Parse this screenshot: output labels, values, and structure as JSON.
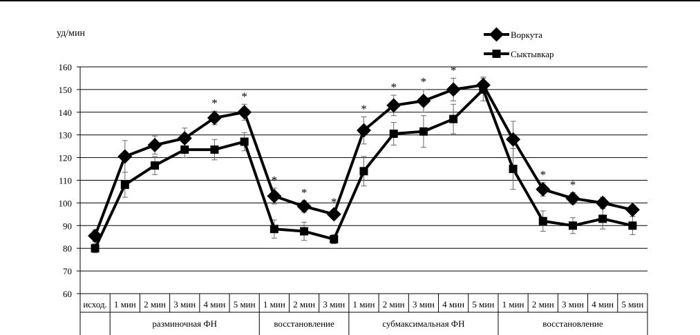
{
  "chart_data": {
    "type": "line",
    "ylabel": "уд/мин",
    "ylim": [
      60,
      160
    ],
    "yticks": [
      60,
      70,
      80,
      90,
      100,
      110,
      120,
      130,
      140,
      150,
      160
    ],
    "grid": true,
    "legend_position": "top-right",
    "categories": [
      "исход.",
      "1 мин",
      "2 мин",
      "3 мин",
      "4 мин",
      "5 мин",
      "1 мин",
      "2 мин",
      "3 мин",
      "1 мин",
      "2 мин",
      "3 мин",
      "4 мин",
      "5 мин",
      "1 мин",
      "2 мин",
      "3 мин",
      "4 мин",
      "5 мин"
    ],
    "groups": [
      {
        "label": "",
        "start": 0,
        "end": 0
      },
      {
        "label": "разминочная ФН",
        "start": 1,
        "end": 5
      },
      {
        "label": "восстановление",
        "start": 6,
        "end": 8
      },
      {
        "label": "субмаксимальная  ФН",
        "start": 9,
        "end": 13
      },
      {
        "label": "восстановление",
        "start": 14,
        "end": 18
      }
    ],
    "series": [
      {
        "name": "Воркута",
        "marker": "diamond",
        "color": "#000000",
        "values": [
          85.5,
          120.5,
          125.5,
          128.5,
          137.5,
          140,
          103,
          98.5,
          95,
          132,
          143,
          145,
          150,
          152,
          128,
          106,
          102,
          100,
          97
        ],
        "errors": [
          2.5,
          7,
          4,
          4.5,
          3,
          3.5,
          3.5,
          2.5,
          2,
          6,
          4.5,
          5,
          5,
          3.5,
          8,
          3,
          2.5,
          2.5,
          3
        ]
      },
      {
        "name": "Сыктывкар",
        "marker": "square",
        "color": "#000000",
        "values": [
          80,
          108,
          116.5,
          123.5,
          123.5,
          127,
          88.5,
          87.5,
          84,
          114,
          130.5,
          131.5,
          137,
          150,
          115,
          92,
          90,
          93,
          90
        ],
        "errors": [
          2,
          5.5,
          4,
          3.5,
          4.5,
          4,
          4,
          4,
          2,
          6.5,
          5,
          7,
          6.5,
          5,
          9,
          4.5,
          3.5,
          4.5,
          4
        ]
      }
    ],
    "significance_markers": {
      "symbol": "*",
      "indices": [
        4,
        5,
        6,
        7,
        8,
        9,
        10,
        11,
        12,
        15,
        16
      ]
    }
  }
}
